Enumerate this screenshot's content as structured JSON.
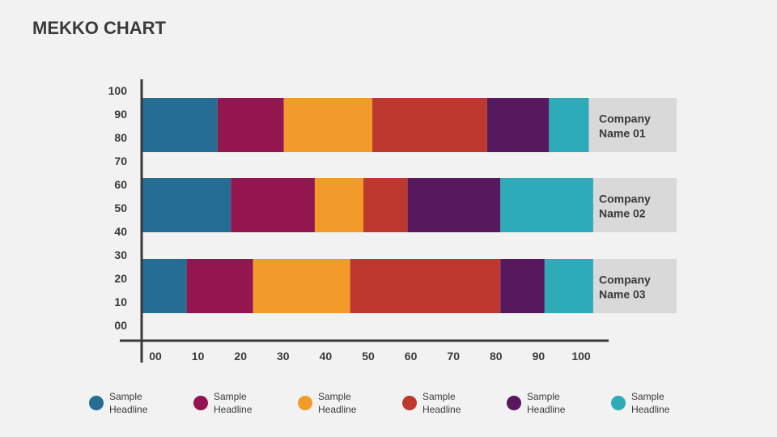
{
  "title": "MEKKO CHART",
  "chart_data": {
    "type": "bar",
    "orientation": "horizontal",
    "stacked": true,
    "categories": [
      "Company Name 01",
      "Company Name 02",
      "Company Name 03"
    ],
    "series": [
      {
        "name": "Sample Headline",
        "color": "#266d93",
        "values": [
          17,
          20,
          10
        ]
      },
      {
        "name": "Sample Headline",
        "color": "#931651",
        "values": [
          15,
          19,
          15
        ]
      },
      {
        "name": "Sample Headline",
        "color": "#f29b2a",
        "values": [
          20,
          11,
          22
        ]
      },
      {
        "name": "Sample Headline",
        "color": "#bd382f",
        "values": [
          26,
          10,
          34
        ]
      },
      {
        "name": "Sample Headline",
        "color": "#57185d",
        "values": [
          14,
          21,
          10
        ]
      },
      {
        "name": "Sample Headline",
        "color": "#2eabb8",
        "values": [
          9,
          21,
          11
        ]
      }
    ],
    "x_ticks": [
      "00",
      "10",
      "20",
      "30",
      "40",
      "50",
      "60",
      "70",
      "80",
      "90",
      "100"
    ],
    "y_ticks": [
      "00",
      "10",
      "20",
      "30",
      "40",
      "50",
      "60",
      "70",
      "80",
      "90",
      "100"
    ],
    "xlim": [
      0,
      100
    ],
    "ylim": [
      0,
      100
    ],
    "grid": false,
    "legend_position": "bottom",
    "label_box_color": "#d9d9d9",
    "axis_color": "#3a3a3a"
  },
  "legend": [
    {
      "label": "Sample Headline",
      "color": "#266d93"
    },
    {
      "label": "Sample Headline",
      "color": "#931651"
    },
    {
      "label": "Sample Headline",
      "color": "#f29b2a"
    },
    {
      "label": "Sample Headline",
      "color": "#bd382f"
    },
    {
      "label": "Sample Headline",
      "color": "#57185d"
    },
    {
      "label": "Sample Headline",
      "color": "#2eabb8"
    }
  ]
}
